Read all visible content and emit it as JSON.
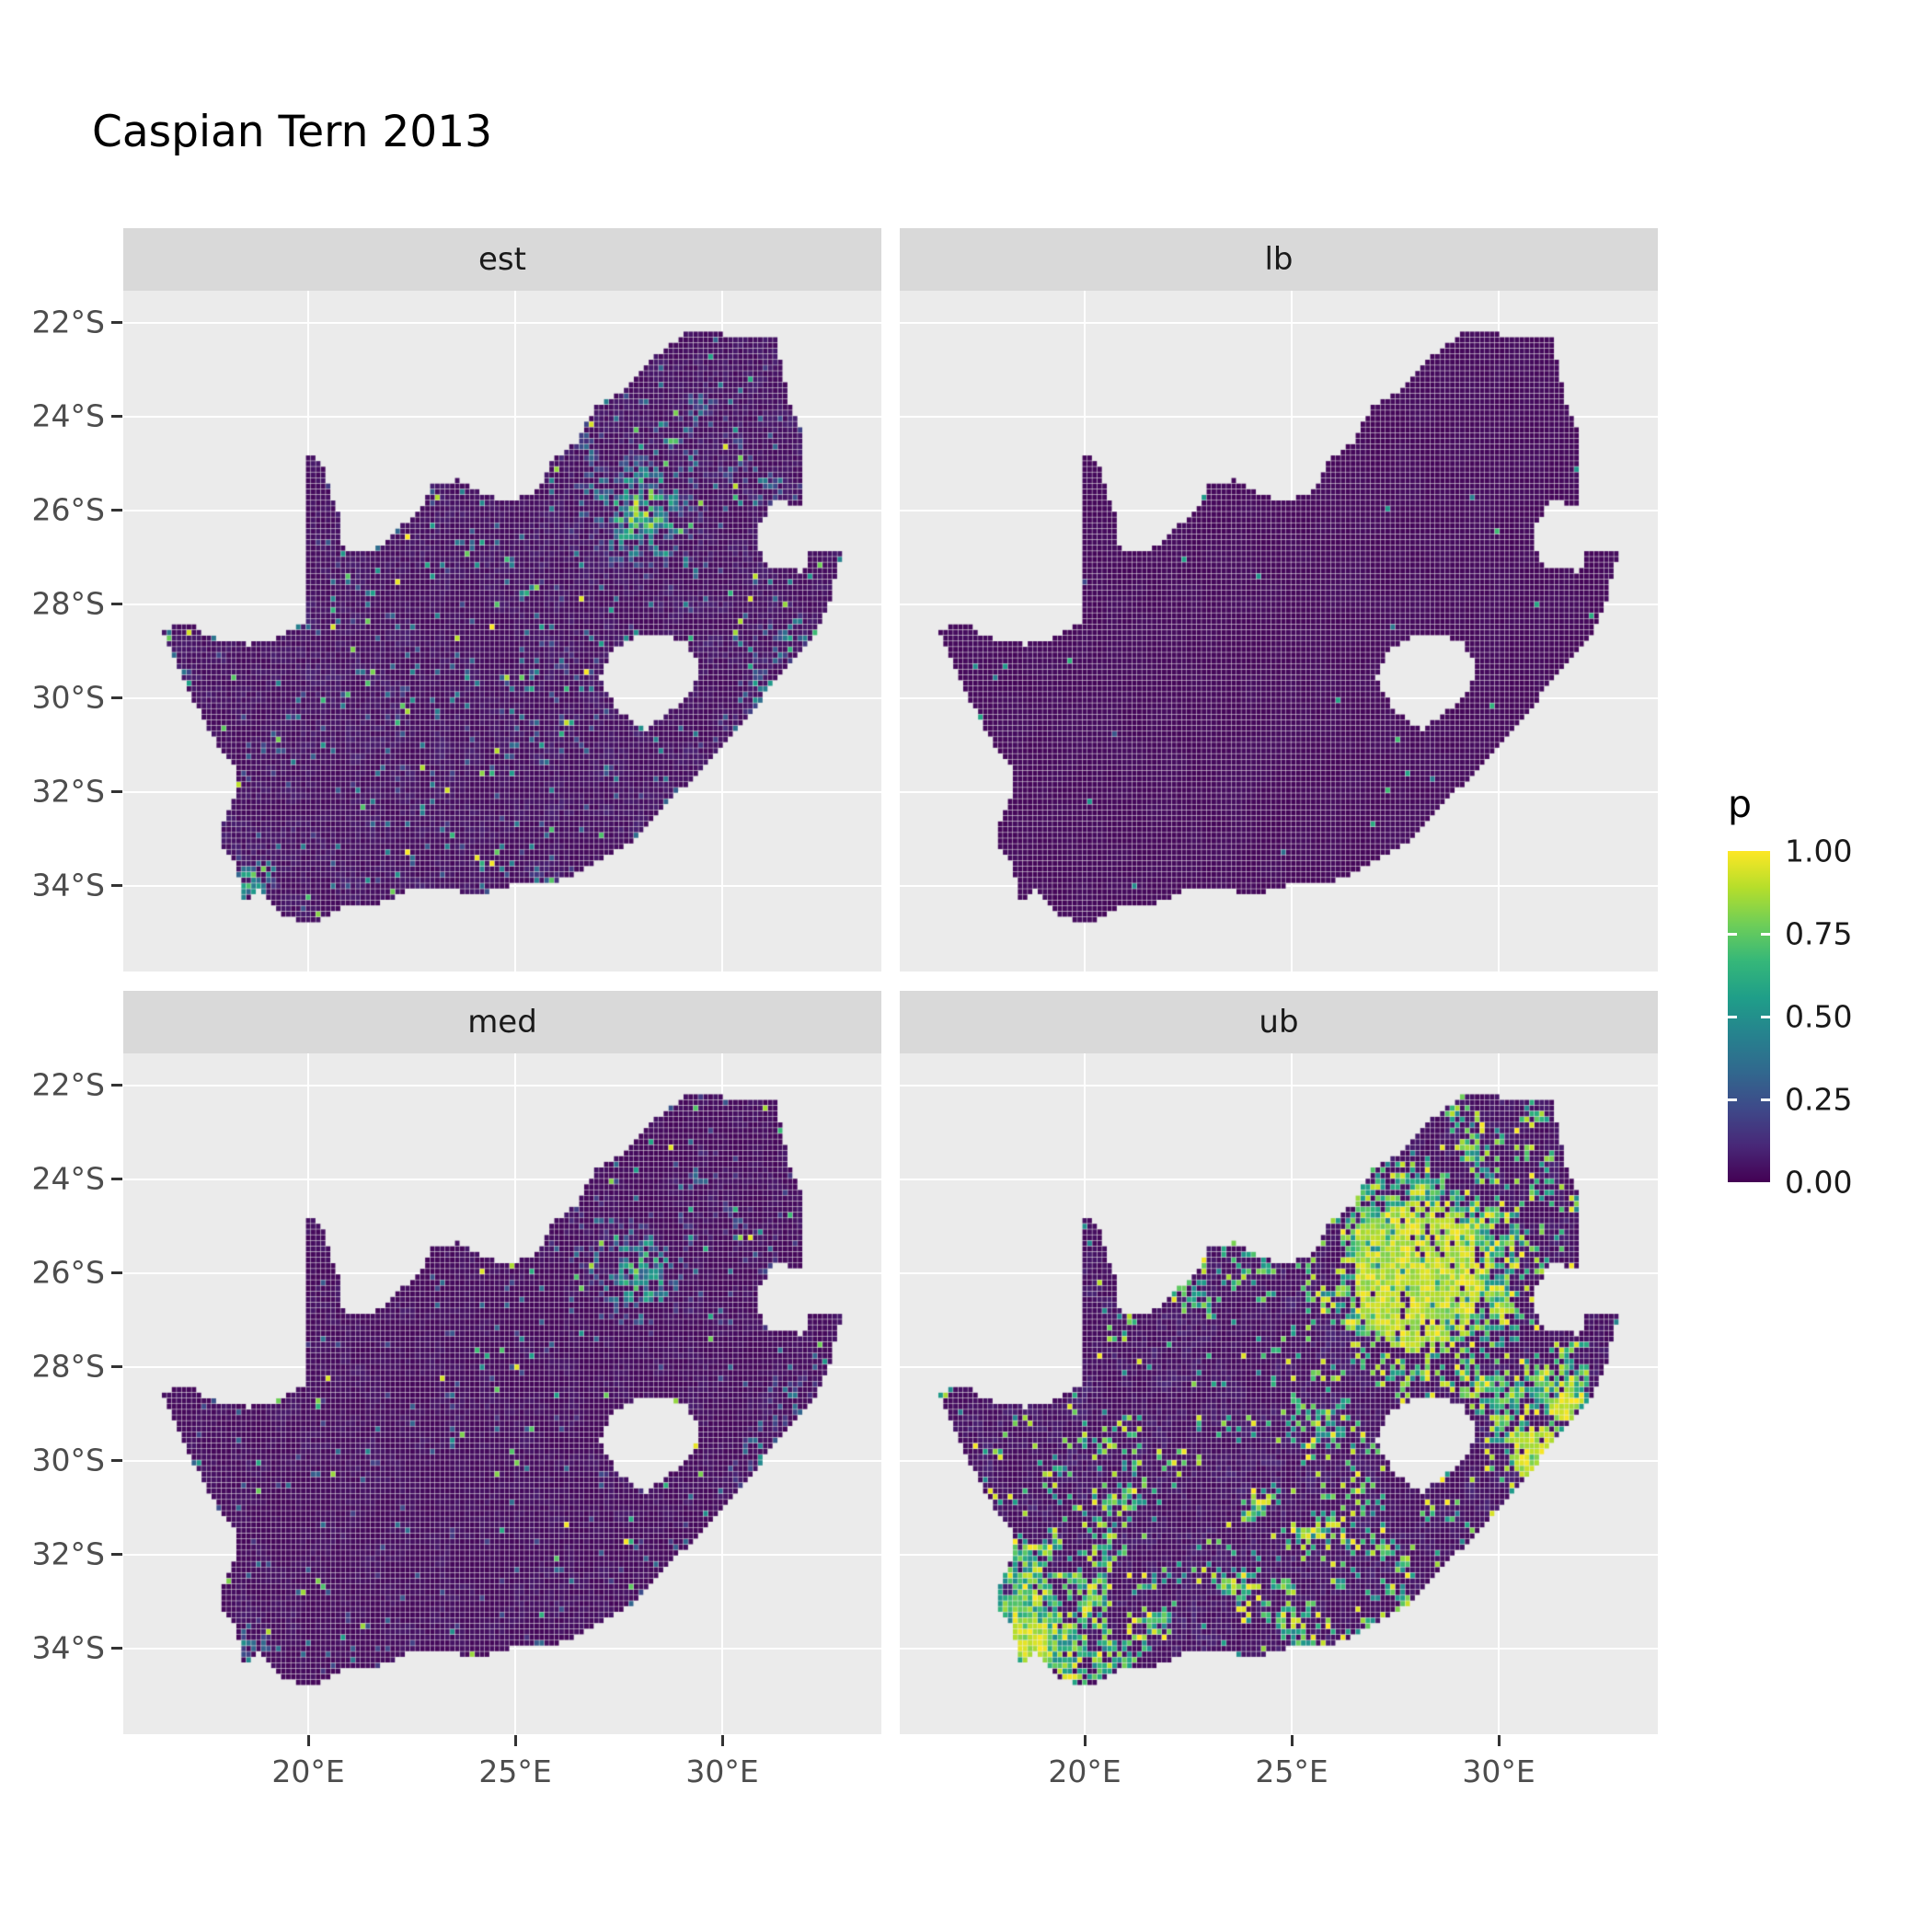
{
  "title": "Caspian Tern 2013",
  "colors": {
    "panel_bg": "#EBEBEB",
    "strip_bg": "#D9D9D9",
    "grid_line": "#FFFFFF",
    "axis_text": "#4D4D4D",
    "strip_text": "#1A1A1A",
    "title_text": "#000000",
    "na_fill": "#EBEBEB"
  },
  "chart_data": {
    "type": "heatmap",
    "title": "Caspian Tern 2013",
    "facets": [
      "est",
      "lb",
      "med",
      "ub"
    ],
    "facet_layout": [
      [
        "est",
        "lb"
      ],
      [
        "med",
        "ub"
      ]
    ],
    "x_ticks": [
      "20°E",
      "25°E",
      "30°E"
    ],
    "x_tick_values": [
      20,
      25,
      30
    ],
    "y_ticks": [
      "22°S",
      "24°S",
      "26°S",
      "28°S",
      "30°S",
      "32°S",
      "34°S"
    ],
    "y_tick_values": [
      -22,
      -24,
      -26,
      -28,
      -30,
      -32,
      -34
    ],
    "xlim": [
      15.53,
      33.84
    ],
    "ylim": [
      -35.82,
      -21.31
    ],
    "grid": "major white gridlines on grey panel",
    "legend": {
      "title": "p",
      "position": "right",
      "labels": [
        "1.00",
        "0.75",
        "0.50",
        "0.25",
        "0.00"
      ],
      "values": [
        1.0,
        0.75,
        0.5,
        0.25,
        0.0
      ],
      "limits": [
        0,
        1
      ]
    },
    "colormap": {
      "name": "viridis",
      "stops": [
        "#440154",
        "#482878",
        "#3e4989",
        "#31688e",
        "#26828e",
        "#1f9e89",
        "#35b779",
        "#6ece58",
        "#b5de2b",
        "#fde725"
      ]
    },
    "region": "South Africa raster grid (Lesotho hole, Eswatini notch excluded)",
    "facet_summary": {
      "est": "mostly near-zero with scattered mid/high cells; dense high-probability cluster over Gauteng, specks along KwaZulu-Natal coast and Cape towns",
      "lb": "almost uniformly zero with very rare low specks",
      "med": "mostly zero, sparse scattered cells, moderate Gauteng cluster",
      "ub": "widespread mid/high patches, large yellow blob over Gauteng, high values along southern / south-western and eastern coasts"
    },
    "map_outline": {
      "south_africa": [
        [
          16.45,
          -28.6
        ],
        [
          17.05,
          -28.35
        ],
        [
          17.35,
          -28.55
        ],
        [
          17.95,
          -28.8
        ],
        [
          18.6,
          -28.85
        ],
        [
          19.3,
          -28.7
        ],
        [
          19.7,
          -28.5
        ],
        [
          20.0,
          -28.37
        ],
        [
          20.0,
          -24.77
        ],
        [
          20.3,
          -24.95
        ],
        [
          20.55,
          -25.6
        ],
        [
          20.75,
          -26.1
        ],
        [
          20.85,
          -26.8
        ],
        [
          21.6,
          -26.85
        ],
        [
          22.2,
          -26.35
        ],
        [
          22.7,
          -26.0
        ],
        [
          23.0,
          -25.45
        ],
        [
          23.6,
          -25.35
        ],
        [
          24.2,
          -25.65
        ],
        [
          24.9,
          -25.8
        ],
        [
          25.55,
          -25.55
        ],
        [
          25.9,
          -24.9
        ],
        [
          26.5,
          -24.55
        ],
        [
          26.95,
          -23.75
        ],
        [
          27.65,
          -23.4
        ],
        [
          28.2,
          -22.85
        ],
        [
          29.05,
          -22.25
        ],
        [
          29.7,
          -22.15
        ],
        [
          30.3,
          -22.3
        ],
        [
          31.3,
          -22.35
        ],
        [
          31.6,
          -23.6
        ],
        [
          31.9,
          -24.3
        ],
        [
          31.98,
          -25.1
        ],
        [
          31.95,
          -25.95
        ],
        [
          31.3,
          -25.75
        ],
        [
          30.9,
          -26.3
        ],
        [
          30.85,
          -26.8
        ],
        [
          31.1,
          -27.2
        ],
        [
          31.95,
          -27.3
        ],
        [
          32.13,
          -26.85
        ],
        [
          32.9,
          -26.85
        ],
        [
          32.6,
          -27.9
        ],
        [
          32.25,
          -28.6
        ],
        [
          31.6,
          -29.35
        ],
        [
          31.05,
          -29.9
        ],
        [
          30.4,
          -30.65
        ],
        [
          29.9,
          -31.15
        ],
        [
          29.2,
          -31.8
        ],
        [
          28.5,
          -32.35
        ],
        [
          27.9,
          -33.0
        ],
        [
          27.0,
          -33.5
        ],
        [
          26.4,
          -33.75
        ],
        [
          25.65,
          -34.0
        ],
        [
          25.0,
          -33.95
        ],
        [
          24.2,
          -34.15
        ],
        [
          23.4,
          -34.1
        ],
        [
          22.55,
          -34.05
        ],
        [
          21.8,
          -34.35
        ],
        [
          20.9,
          -34.45
        ],
        [
          20.0,
          -34.82
        ],
        [
          19.4,
          -34.6
        ],
        [
          19.1,
          -34.35
        ],
        [
          18.8,
          -34.1
        ],
        [
          18.45,
          -34.35
        ],
        [
          18.35,
          -34.1
        ],
        [
          18.3,
          -33.6
        ],
        [
          17.95,
          -33.15
        ],
        [
          17.85,
          -32.75
        ],
        [
          18.25,
          -32.1
        ],
        [
          18.2,
          -31.45
        ],
        [
          17.6,
          -30.7
        ],
        [
          17.05,
          -29.7
        ],
        [
          16.75,
          -29.1
        ]
      ],
      "lesotho_hole": [
        [
          27.05,
          -29.6
        ],
        [
          27.35,
          -28.95
        ],
        [
          27.95,
          -28.7
        ],
        [
          28.6,
          -28.6
        ],
        [
          29.15,
          -28.85
        ],
        [
          29.45,
          -29.3
        ],
        [
          29.3,
          -29.85
        ],
        [
          28.9,
          -30.15
        ],
        [
          28.15,
          -30.65
        ],
        [
          27.75,
          -30.45
        ],
        [
          27.4,
          -30.15
        ]
      ]
    },
    "render": {
      "cell_deg": 0.12,
      "hotspots": [
        [
          28.05,
          -26.05,
          0.75,
          1.0
        ],
        [
          28.25,
          -25.6,
          0.45,
          0.85
        ],
        [
          27.1,
          -25.7,
          0.5,
          0.55
        ],
        [
          29.1,
          -25.3,
          0.45,
          0.45
        ],
        [
          26.7,
          -24.7,
          0.4,
          0.4
        ],
        [
          30.95,
          -29.85,
          0.4,
          0.75
        ],
        [
          31.55,
          -28.8,
          0.45,
          0.6
        ],
        [
          30.4,
          -30.7,
          0.3,
          0.55
        ],
        [
          18.55,
          -33.95,
          0.4,
          0.75
        ],
        [
          18.85,
          -34.45,
          0.3,
          0.55
        ],
        [
          25.6,
          -33.95,
          0.28,
          0.55
        ],
        [
          27.9,
          -33.0,
          0.28,
          0.45
        ],
        [
          26.2,
          -29.12,
          0.25,
          0.45
        ],
        [
          29.45,
          -23.9,
          0.4,
          0.45
        ],
        [
          30.2,
          -24.9,
          0.45,
          0.4
        ],
        [
          31.0,
          -25.45,
          0.4,
          0.45
        ]
      ]
    }
  }
}
